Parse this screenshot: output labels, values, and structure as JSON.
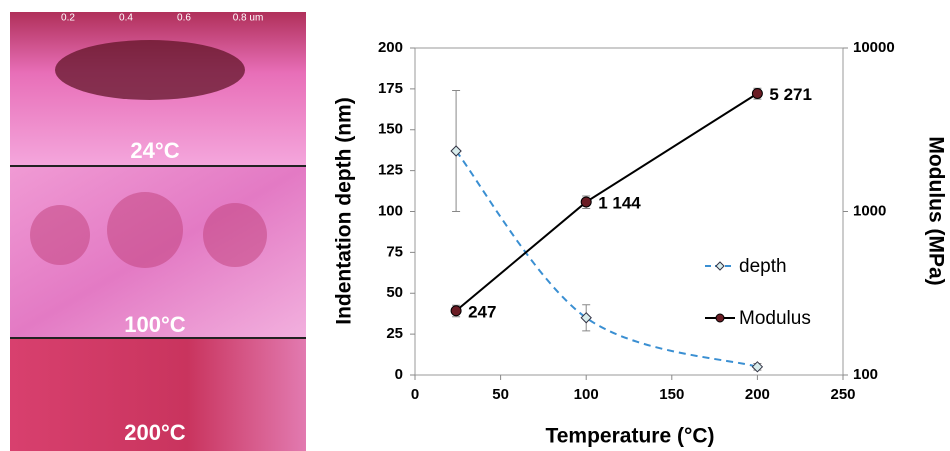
{
  "afm_panels": {
    "scale_labels": [
      "0.2",
      "0.4",
      "0.6",
      "0.8 um"
    ],
    "labels": [
      "24°C",
      "100°C",
      "200°C"
    ]
  },
  "chart_data": {
    "type": "line",
    "x_label": "Temperature (°C)",
    "y_label": "Indentation depth (nm)",
    "y2_label": "Modulus (MPa)",
    "x": [
      24,
      100,
      200
    ],
    "series": [
      {
        "name": "depth",
        "color": "#3a8fd2",
        "dashed": true,
        "marker": "diamond",
        "values": [
          137,
          35,
          5
        ],
        "errors": [
          37,
          8,
          2
        ]
      },
      {
        "name": "Modulus",
        "color": "#000000",
        "marker": "circle",
        "axis": "y2",
        "values": [
          247,
          1144,
          5271
        ],
        "value_labels": [
          "247",
          "1 144",
          "5 271"
        ],
        "errors": [
          20,
          100,
          400
        ]
      }
    ],
    "xlim": [
      0,
      250
    ],
    "xticks": [
      0,
      50,
      100,
      150,
      200,
      250
    ],
    "ylim": [
      0,
      200
    ],
    "yticks": [
      0,
      25,
      50,
      75,
      100,
      125,
      150,
      175,
      200
    ],
    "y2lim": [
      100,
      10000
    ],
    "y2ticks": [
      100,
      1000,
      10000
    ],
    "y2scale": "log",
    "legend": "right"
  }
}
